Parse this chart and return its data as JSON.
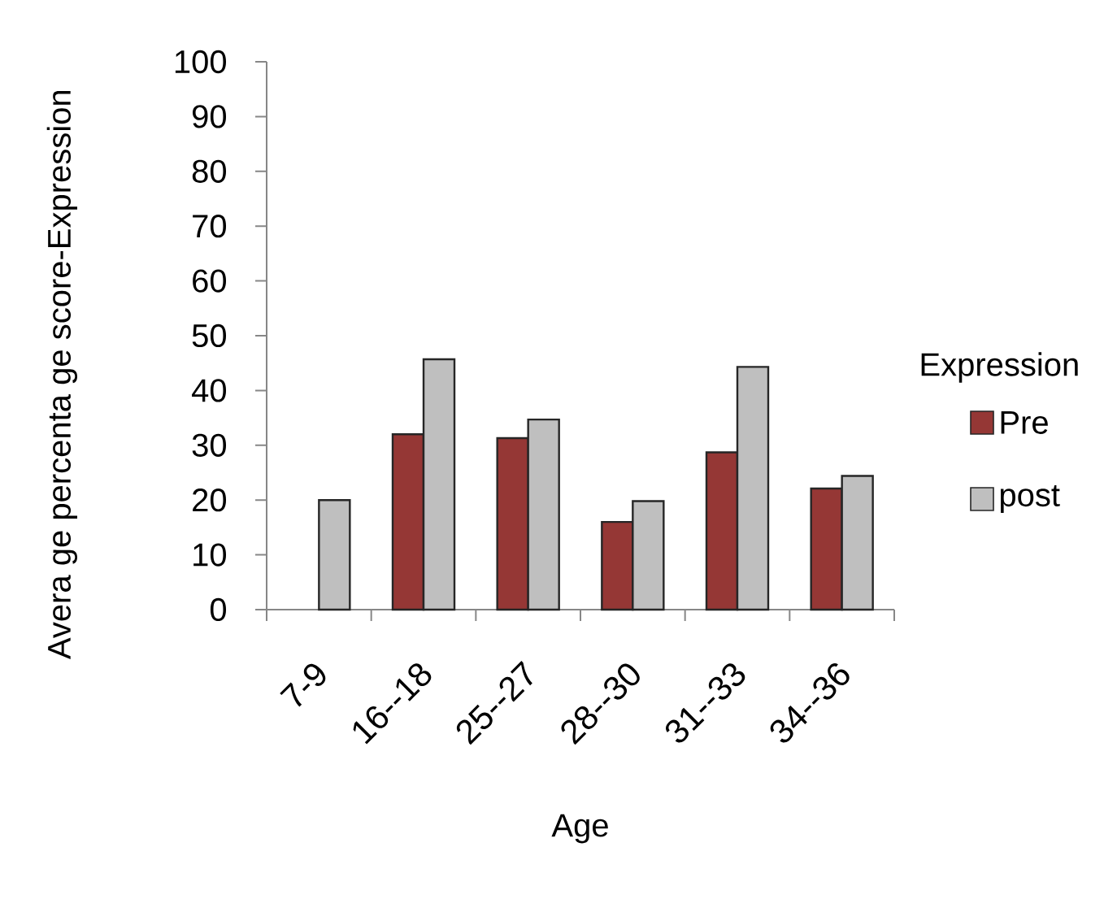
{
  "chart_data": {
    "type": "bar",
    "xlabel": "Age",
    "ylabel": "Avera ge percenta ge score-Expression",
    "legend_title": "Expression",
    "categories": [
      "7-9",
      "16--18",
      "25--27",
      "28--30",
      "31--33",
      "34--36"
    ],
    "series": [
      {
        "name": "Pre",
        "color": "#953735",
        "values": [
          null,
          32.0,
          31.3,
          16.0,
          28.7,
          22.1
        ]
      },
      {
        "name": "post",
        "color": "#bfbfbf",
        "values": [
          20.0,
          45.7,
          34.7,
          19.8,
          44.3,
          24.4
        ]
      }
    ],
    "ylim": [
      0,
      100
    ],
    "yticks": [
      0,
      10,
      20,
      30,
      40,
      50,
      60,
      70,
      80,
      90,
      100
    ],
    "legend": "right",
    "grid": false
  }
}
